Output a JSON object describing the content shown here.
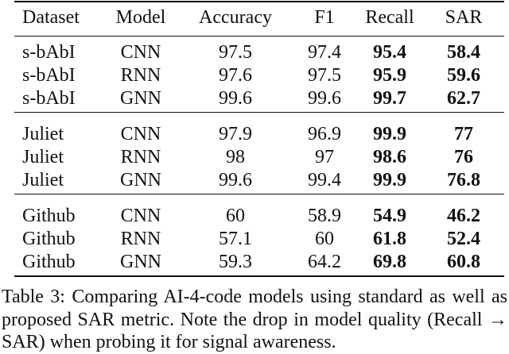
{
  "table": {
    "columns": [
      "Dataset",
      "Model",
      "Accuracy",
      "F1",
      "Recall",
      "SAR"
    ],
    "groups": [
      {
        "rows": [
          [
            "s-bAbI",
            "CNN",
            97.5,
            97.4,
            95.4,
            58.4
          ],
          [
            "s-bAbI",
            "RNN",
            97.6,
            97.5,
            95.9,
            59.6
          ],
          [
            "s-bAbI",
            "GNN",
            99.6,
            99.6,
            99.7,
            62.7
          ]
        ]
      },
      {
        "rows": [
          [
            "Juliet",
            "CNN",
            97.9,
            96.9,
            99.9,
            77
          ],
          [
            "Juliet",
            "RNN",
            98,
            97,
            98.6,
            76
          ],
          [
            "Juliet",
            "GNN",
            99.6,
            99.4,
            99.9,
            76.8
          ]
        ]
      },
      {
        "rows": [
          [
            "Github",
            "CNN",
            60,
            58.9,
            54.9,
            46.2
          ],
          [
            "Github",
            "RNN",
            57.1,
            60,
            61.8,
            52.4
          ],
          [
            "Github",
            "GNN",
            59.3,
            64.2,
            69.8,
            60.8
          ]
        ]
      }
    ]
  },
  "caption": "Table 3: Comparing AI-4-code models using standard as well as proposed SAR metric. Note the drop in model quality (Recall → SAR) when probing it for signal awareness."
}
